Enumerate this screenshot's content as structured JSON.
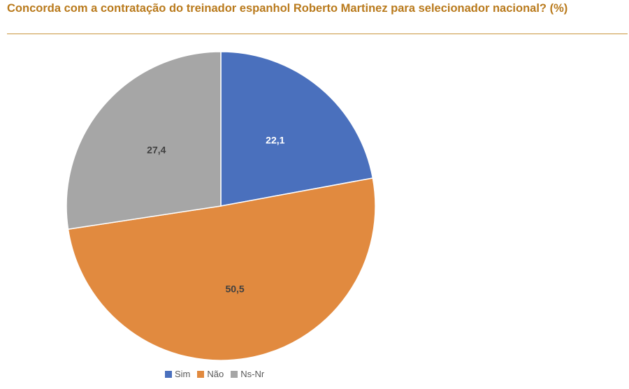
{
  "chart_data": {
    "type": "pie",
    "title": "Concorda com a contratação do treinador espanhol Roberto Martinez para selecionador nacional? (%)",
    "categories": [
      "Sim",
      "Não",
      "Ns-Nr"
    ],
    "values": [
      22.1,
      50.5,
      27.4
    ],
    "value_labels": [
      "22,1",
      "50,5",
      "27,4"
    ],
    "colors": [
      "#4a70bd",
      "#e18a3f",
      "#a6a6a6"
    ],
    "label_colors": [
      "#ffffff",
      "#404040",
      "#404040"
    ],
    "legend": {
      "placement": "bottom",
      "entries": [
        "Sim",
        "Não",
        "Ns-Nr"
      ]
    }
  }
}
